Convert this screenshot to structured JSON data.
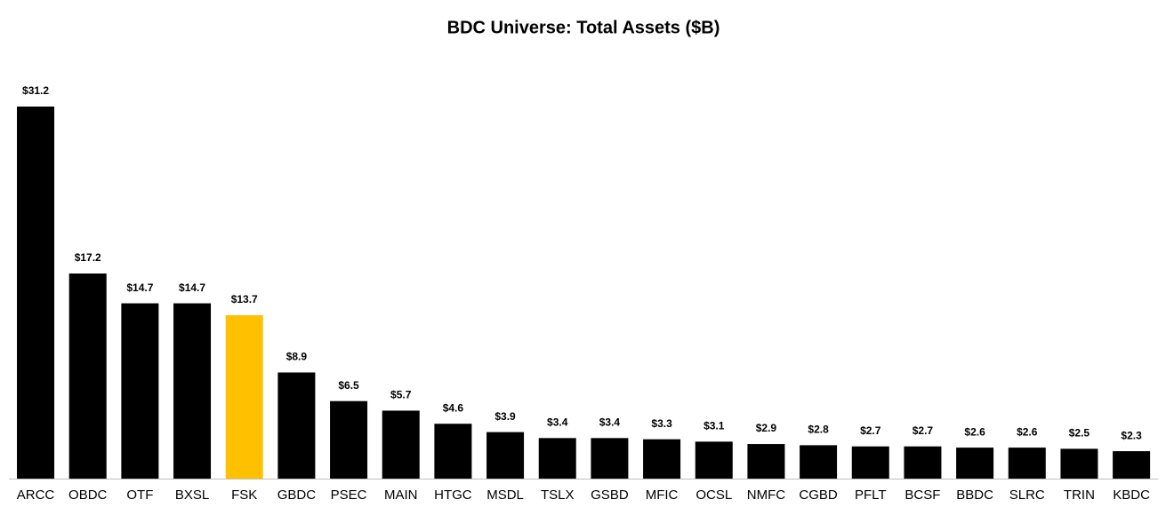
{
  "chart_data": {
    "type": "bar",
    "title": "BDC Universe: Total Assets ($B)",
    "categories": [
      "ARCC",
      "OBDC",
      "OTF",
      "BXSL",
      "FSK",
      "GBDC",
      "PSEC",
      "MAIN",
      "HTGC",
      "MSDL",
      "TSLX",
      "GSBD",
      "MFIC",
      "OCSL",
      "NMFC",
      "CGBD",
      "PFLT",
      "BCSF",
      "BBDC",
      "SLRC",
      "TRIN",
      "KBDC"
    ],
    "values": [
      31.2,
      17.2,
      14.7,
      14.7,
      13.7,
      8.9,
      6.5,
      5.7,
      4.6,
      3.9,
      3.4,
      3.4,
      3.3,
      3.1,
      2.9,
      2.8,
      2.7,
      2.7,
      2.6,
      2.6,
      2.5,
      2.3
    ],
    "value_labels": [
      "$31.2",
      "$17.2",
      "$14.7",
      "$14.7",
      "$13.7",
      "$8.9",
      "$6.5",
      "$5.7",
      "$4.6",
      "$3.9",
      "$3.4",
      "$3.4",
      "$3.3",
      "$3.1",
      "$2.9",
      "$2.8",
      "$2.7",
      "$2.7",
      "$2.6",
      "$2.6",
      "$2.5",
      "$2.3"
    ],
    "colors": [
      "#000000",
      "#000000",
      "#000000",
      "#000000",
      "#ffc000",
      "#000000",
      "#000000",
      "#000000",
      "#000000",
      "#000000",
      "#000000",
      "#000000",
      "#000000",
      "#000000",
      "#000000",
      "#000000",
      "#000000",
      "#000000",
      "#000000",
      "#000000",
      "#000000",
      "#000000"
    ]
  }
}
